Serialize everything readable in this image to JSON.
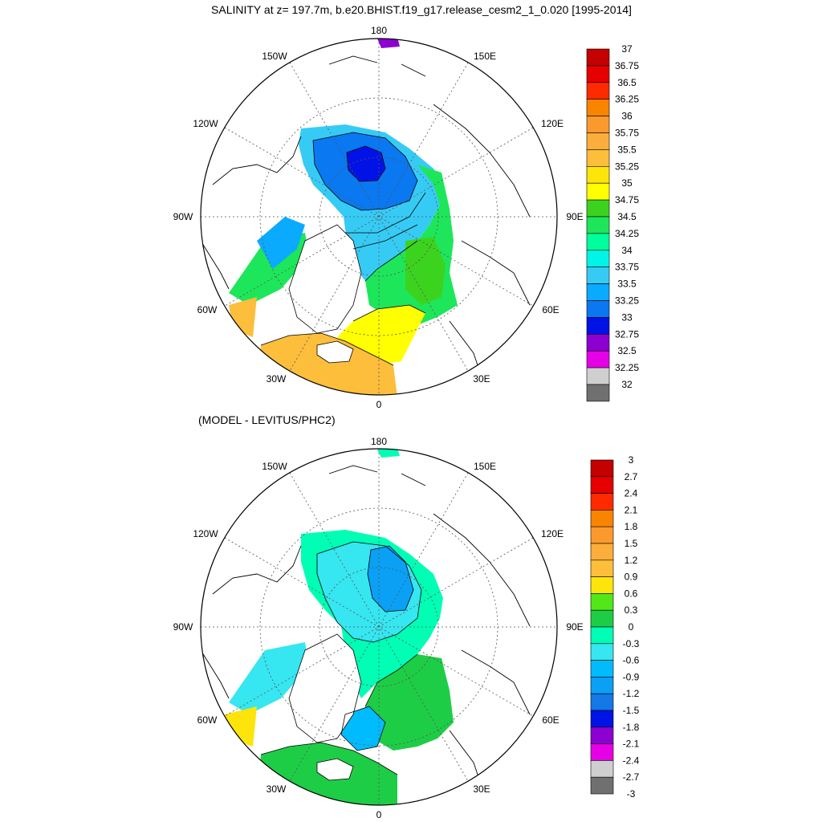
{
  "title": "SALINITY at z= 197.7m, b.e20.BHIST.f19_g17.release_cesm2_1_0.020 [1995-2014]",
  "subtitle": "(MODEL - LEVITUS/PHC2)",
  "longitude_labels": {
    "top": "180",
    "w150": "150W",
    "e150": "150E",
    "w120": "120W",
    "e120": "120E",
    "w90": "90W",
    "e90": "90E",
    "w60": "60W",
    "e60": "60E",
    "w30": "30W",
    "e30": "30E",
    "bottom": "0"
  },
  "colorbars": {
    "salinity": {
      "labels": [
        "37",
        "36.75",
        "36.5",
        "36.25",
        "36",
        "35.75",
        "35.5",
        "35.25",
        "35",
        "34.75",
        "34.5",
        "34.25",
        "34",
        "33.75",
        "33.5",
        "33.25",
        "33",
        "32.75",
        "32.5",
        "32.25",
        "32"
      ],
      "colors": [
        "#c40000",
        "#e60000",
        "#ff2a00",
        "#f98400",
        "#fb9a2c",
        "#fcae3c",
        "#fdbe3c",
        "#fde40a",
        "#ffff00",
        "#3cd31e",
        "#1ee65a",
        "#00ff9c",
        "#00f5e6",
        "#36cbf5",
        "#0aaaff",
        "#0a78f0",
        "#0012e6",
        "#8c00d2",
        "#e600e6",
        "#cfcfcf",
        "#707070"
      ]
    },
    "difference": {
      "labels": [
        "3",
        "2.7",
        "2.4",
        "2.1",
        "1.8",
        "1.5",
        "1.2",
        "0.9",
        "0.6",
        "0.3",
        "0",
        "-0.3",
        "-0.6",
        "-0.9",
        "-1.2",
        "-1.5",
        "-1.8",
        "-2.1",
        "-2.4",
        "-2.7",
        "-3"
      ],
      "colors": [
        "#c40000",
        "#e60000",
        "#ff2a00",
        "#f98400",
        "#fb9a2c",
        "#fcae3c",
        "#fdbe3c",
        "#fde40a",
        "#55e619",
        "#1ecd46",
        "#00ffb4",
        "#36e6f0",
        "#00bcff",
        "#0aa0f5",
        "#1478e6",
        "#0014e6",
        "#8c00d2",
        "#e600e6",
        "#cfcfcf",
        "#707070"
      ]
    }
  },
  "map_field_colors": {
    "land": "#ffffff",
    "coast": "#000000"
  }
}
